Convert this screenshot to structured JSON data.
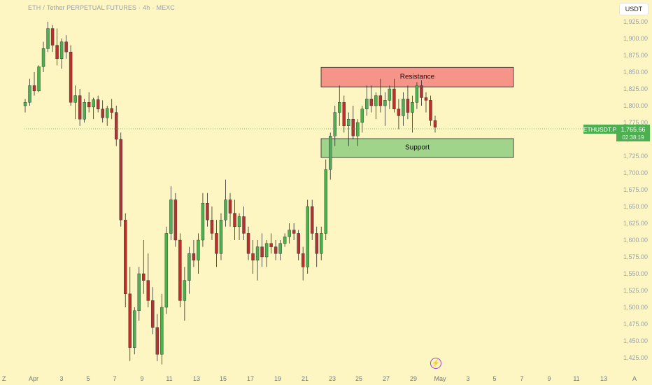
{
  "header": {
    "symbol": "ETH",
    "pair": "Tether PERPETUAL FUTURES",
    "interval": "4h",
    "exchange": "MEXC",
    "currency_button": "USDT"
  },
  "price_axis": {
    "labels": [
      "1,925.00",
      "1,900.00",
      "1,875.00",
      "1,850.00",
      "1,825.00",
      "1,800.00",
      "1,775.00",
      "1,750.00",
      "1,725.00",
      "1,700.00",
      "1,675.00",
      "1,650.00",
      "1,625.00",
      "1,600.00",
      "1,575.00",
      "1,550.00",
      "1,525.00",
      "1,500.00",
      "1,475.00",
      "1,450.00",
      "1,425.00"
    ],
    "current_symbol": "ETHUSDT.P",
    "current_price": "1,765.66",
    "countdown": "02:38:19"
  },
  "time_axis": {
    "labels": [
      "Apr",
      "3",
      "5",
      "7",
      "9",
      "11",
      "13",
      "15",
      "17",
      "19",
      "21",
      "23",
      "25",
      "27",
      "29",
      "May",
      "3",
      "5",
      "7",
      "9",
      "11",
      "13"
    ]
  },
  "logo": "Z",
  "zones": {
    "resistance": "Resistance",
    "support": "Support"
  },
  "colors": {
    "background": "#fdf6c2",
    "up": "#4caf50",
    "down": "#b7322f",
    "resistance_fill": "#f7948a",
    "support_fill": "#9fd48a"
  },
  "chart_data": {
    "type": "candlestick",
    "symbol": "ETHUSDT.P",
    "ylim": [
      1410,
      1945
    ],
    "current_price": 1765.66,
    "resistance_zone": [
      1828,
      1857
    ],
    "support_zone": [
      1723,
      1751
    ],
    "candles": [
      [
        1800,
        1810,
        1790,
        1805
      ],
      [
        1805,
        1840,
        1800,
        1830
      ],
      [
        1830,
        1850,
        1815,
        1822
      ],
      [
        1822,
        1860,
        1820,
        1858
      ],
      [
        1858,
        1895,
        1850,
        1885
      ],
      [
        1885,
        1925,
        1880,
        1915
      ],
      [
        1915,
        1920,
        1880,
        1890
      ],
      [
        1890,
        1915,
        1860,
        1870
      ],
      [
        1870,
        1900,
        1855,
        1895
      ],
      [
        1895,
        1905,
        1870,
        1880
      ],
      [
        1880,
        1890,
        1800,
        1805
      ],
      [
        1805,
        1830,
        1780,
        1815
      ],
      [
        1815,
        1825,
        1770,
        1780
      ],
      [
        1780,
        1810,
        1775,
        1805
      ],
      [
        1805,
        1820,
        1790,
        1798
      ],
      [
        1798,
        1812,
        1780,
        1809
      ],
      [
        1809,
        1815,
        1790,
        1795
      ],
      [
        1795,
        1808,
        1775,
        1782
      ],
      [
        1782,
        1800,
        1770,
        1796
      ],
      [
        1796,
        1810,
        1780,
        1790
      ],
      [
        1790,
        1800,
        1740,
        1750
      ],
      [
        1750,
        1760,
        1620,
        1630
      ],
      [
        1630,
        1640,
        1500,
        1520
      ],
      [
        1520,
        1560,
        1420,
        1440
      ],
      [
        1440,
        1500,
        1430,
        1495
      ],
      [
        1495,
        1560,
        1480,
        1550
      ],
      [
        1550,
        1600,
        1520,
        1540
      ],
      [
        1540,
        1580,
        1500,
        1510
      ],
      [
        1510,
        1530,
        1460,
        1470
      ],
      [
        1470,
        1490,
        1420,
        1430
      ],
      [
        1430,
        1520,
        1415,
        1500
      ],
      [
        1500,
        1620,
        1490,
        1610
      ],
      [
        1610,
        1680,
        1600,
        1660
      ],
      [
        1660,
        1670,
        1590,
        1600
      ],
      [
        1600,
        1610,
        1500,
        1510
      ],
      [
        1510,
        1560,
        1480,
        1540
      ],
      [
        1540,
        1590,
        1520,
        1580
      ],
      [
        1580,
        1600,
        1560,
        1570
      ],
      [
        1570,
        1610,
        1550,
        1600
      ],
      [
        1600,
        1670,
        1590,
        1655
      ],
      [
        1655,
        1670,
        1620,
        1630
      ],
      [
        1630,
        1650,
        1600,
        1610
      ],
      [
        1610,
        1630,
        1560,
        1580
      ],
      [
        1580,
        1640,
        1570,
        1630
      ],
      [
        1630,
        1690,
        1620,
        1660
      ],
      [
        1660,
        1670,
        1620,
        1640
      ],
      [
        1640,
        1660,
        1600,
        1620
      ],
      [
        1620,
        1640,
        1600,
        1635
      ],
      [
        1635,
        1650,
        1600,
        1610
      ],
      [
        1610,
        1620,
        1570,
        1580
      ],
      [
        1580,
        1600,
        1550,
        1570
      ],
      [
        1570,
        1600,
        1540,
        1590
      ],
      [
        1590,
        1610,
        1560,
        1575
      ],
      [
        1575,
        1600,
        1560,
        1595
      ],
      [
        1595,
        1610,
        1580,
        1590
      ],
      [
        1590,
        1600,
        1570,
        1580
      ],
      [
        1580,
        1600,
        1570,
        1595
      ],
      [
        1595,
        1610,
        1590,
        1605
      ],
      [
        1605,
        1625,
        1595,
        1615
      ],
      [
        1615,
        1625,
        1600,
        1610
      ],
      [
        1610,
        1615,
        1570,
        1580
      ],
      [
        1580,
        1590,
        1540,
        1560
      ],
      [
        1560,
        1660,
        1550,
        1650
      ],
      [
        1650,
        1660,
        1600,
        1610
      ],
      [
        1610,
        1620,
        1560,
        1580
      ],
      [
        1580,
        1620,
        1570,
        1610
      ],
      [
        1610,
        1720,
        1600,
        1705
      ],
      [
        1705,
        1760,
        1690,
        1755
      ],
      [
        1755,
        1800,
        1740,
        1790
      ],
      [
        1790,
        1830,
        1770,
        1805
      ],
      [
        1805,
        1815,
        1760,
        1770
      ],
      [
        1770,
        1790,
        1740,
        1780
      ],
      [
        1780,
        1800,
        1750,
        1755
      ],
      [
        1755,
        1780,
        1740,
        1775
      ],
      [
        1775,
        1800,
        1760,
        1795
      ],
      [
        1795,
        1830,
        1785,
        1810
      ],
      [
        1810,
        1830,
        1790,
        1800
      ],
      [
        1800,
        1820,
        1780,
        1815
      ],
      [
        1815,
        1840,
        1790,
        1800
      ],
      [
        1800,
        1820,
        1770,
        1808
      ],
      [
        1808,
        1830,
        1795,
        1825
      ],
      [
        1825,
        1840,
        1790,
        1795
      ],
      [
        1795,
        1810,
        1765,
        1785
      ],
      [
        1785,
        1820,
        1770,
        1810
      ],
      [
        1810,
        1830,
        1780,
        1790
      ],
      [
        1790,
        1815,
        1760,
        1805
      ],
      [
        1805,
        1835,
        1795,
        1830
      ],
      [
        1830,
        1838,
        1800,
        1812
      ],
      [
        1812,
        1820,
        1790,
        1808
      ],
      [
        1808,
        1815,
        1770,
        1778
      ],
      [
        1778,
        1785,
        1760,
        1768
      ]
    ]
  }
}
